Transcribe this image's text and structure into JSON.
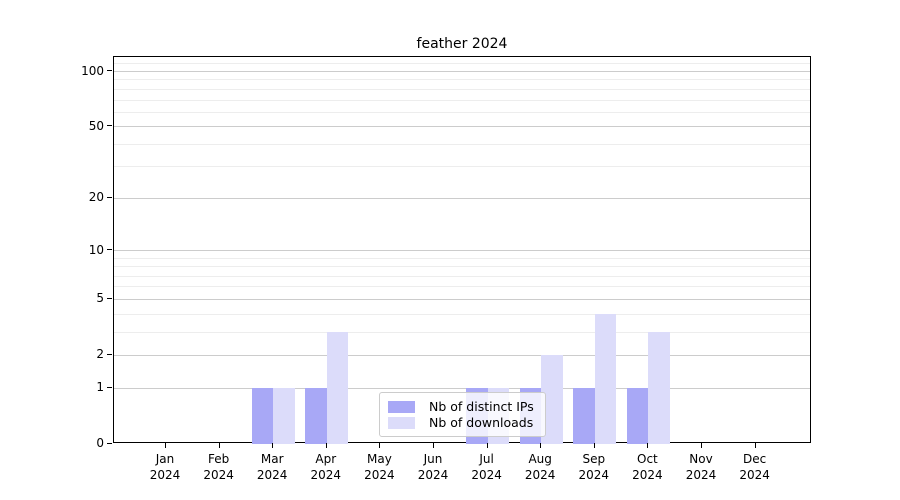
{
  "chart_data": {
    "type": "bar",
    "title": "feather 2024",
    "x_tick_lines": [
      [
        "Jan",
        "2024"
      ],
      [
        "Feb",
        "2024"
      ],
      [
        "Mar",
        "2024"
      ],
      [
        "Apr",
        "2024"
      ],
      [
        "May",
        "2024"
      ],
      [
        "Jun",
        "2024"
      ],
      [
        "Jul",
        "2024"
      ],
      [
        "Aug",
        "2024"
      ],
      [
        "Sep",
        "2024"
      ],
      [
        "Oct",
        "2024"
      ],
      [
        "Nov",
        "2024"
      ],
      [
        "Dec",
        "2024"
      ]
    ],
    "series": [
      {
        "name": "Nb of distinct IPs",
        "color": "#a8a8f6",
        "values": [
          0,
          0,
          1,
          1,
          0,
          0,
          1,
          1,
          1,
          1,
          0,
          0
        ]
      },
      {
        "name": "Nb of downloads",
        "color": "#dcdcfa",
        "values": [
          0,
          0,
          1,
          3,
          0,
          0,
          1,
          2,
          4,
          3,
          0,
          0
        ]
      }
    ],
    "yscale": "log1p",
    "ylim": [
      0,
      120
    ],
    "yticks": [
      0,
      1,
      2,
      5,
      10,
      20,
      50,
      100
    ],
    "y_minor_gridlines": [
      1,
      2,
      3,
      4,
      5,
      6,
      7,
      8,
      9,
      10,
      20,
      30,
      40,
      50,
      60,
      70,
      80,
      90,
      100,
      110
    ],
    "legend_position": "lower center",
    "grid": true
  },
  "colors": {
    "grid_major": "#cccccc",
    "grid_minor": "#ededed",
    "axis": "#000000",
    "background": "#ffffff"
  }
}
